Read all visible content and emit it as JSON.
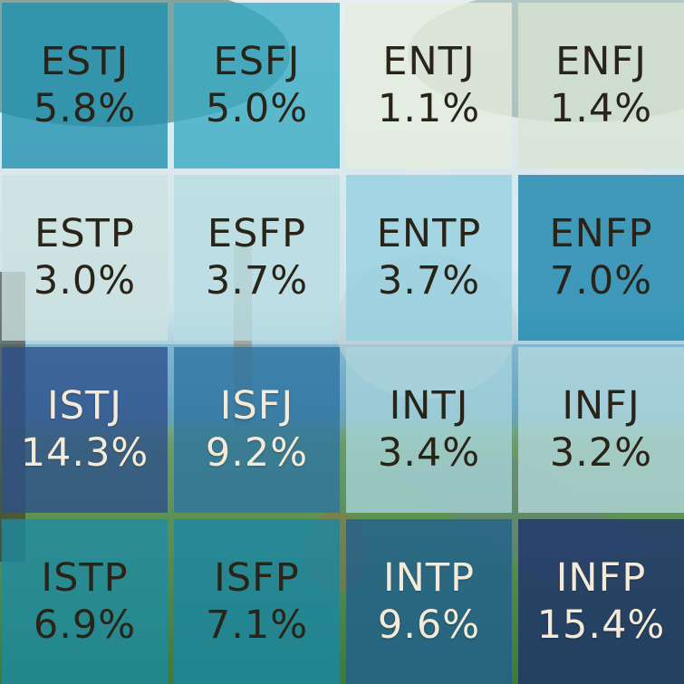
{
  "chart_data": {
    "type": "heatmap",
    "title": "",
    "layout": "4x4 grid",
    "cells": [
      {
        "type": "ESTJ",
        "label": "5.8%",
        "value": 5.8,
        "color": "#1e8fb0",
        "text_tone": "dark"
      },
      {
        "type": "ESFJ",
        "label": "5.0%",
        "value": 5.0,
        "color": "#34a9c4",
        "text_tone": "dark"
      },
      {
        "type": "ENTJ",
        "label": "1.1%",
        "value": 1.1,
        "color": "#e6edde",
        "text_tone": "dark"
      },
      {
        "type": "ENFJ",
        "label": "1.4%",
        "value": 1.4,
        "color": "#d8e4d4",
        "text_tone": "dark"
      },
      {
        "type": "ESTP",
        "label": "3.0%",
        "value": 3.0,
        "color": "#cbe2df",
        "text_tone": "dark"
      },
      {
        "type": "ESFP",
        "label": "3.7%",
        "value": 3.7,
        "color": "#b6dde2",
        "text_tone": "dark"
      },
      {
        "type": "ENTP",
        "label": "3.7%",
        "value": 3.7,
        "color": "#93d0df",
        "text_tone": "dark"
      },
      {
        "type": "ENFP",
        "label": "7.0%",
        "value": 7.0,
        "color": "#1583ac",
        "text_tone": "dark"
      },
      {
        "type": "ISTJ",
        "label": "14.3%",
        "value": 14.3,
        "color": "#2d4f8a",
        "text_tone": "light"
      },
      {
        "type": "ISFJ",
        "label": "9.2%",
        "value": 9.2,
        "color": "#2e73a0",
        "text_tone": "light"
      },
      {
        "type": "INTJ",
        "label": "3.4%",
        "value": 3.4,
        "color": "#a8d5dc",
        "text_tone": "dark"
      },
      {
        "type": "INFJ",
        "label": "3.2%",
        "value": 3.2,
        "color": "#b4d9df",
        "text_tone": "dark"
      },
      {
        "type": "ISTP",
        "label": "6.9%",
        "value": 6.9,
        "color": "#1d8aa5",
        "text_tone": "dark"
      },
      {
        "type": "ISFP",
        "label": "7.1%",
        "value": 7.1,
        "color": "#1a86a6",
        "text_tone": "dark"
      },
      {
        "type": "INTP",
        "label": "9.6%",
        "value": 9.6,
        "color": "#1f5f90",
        "text_tone": "light"
      },
      {
        "type": "INFP",
        "label": "15.4%",
        "value": 15.4,
        "color": "#1c2f6c",
        "text_tone": "light"
      }
    ]
  }
}
